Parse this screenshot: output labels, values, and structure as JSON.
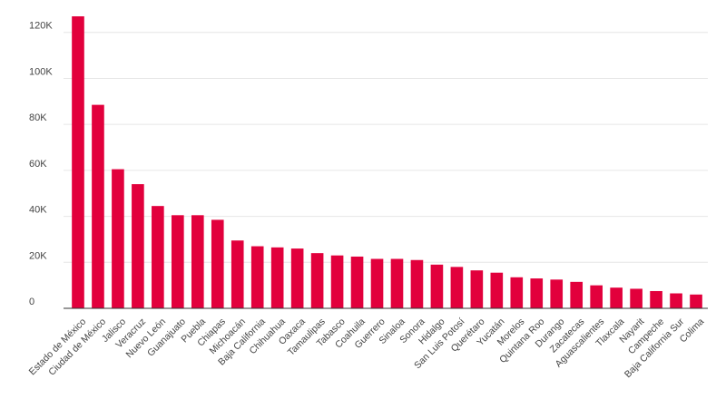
{
  "chart_data": {
    "type": "bar",
    "categories": [
      "Estado de México",
      "Ciudad de México",
      "Jalisco",
      "Veracruz",
      "Nuevo León",
      "Guanajuato",
      "Puebla",
      "Chiapas",
      "Michoacán",
      "Baja California",
      "Chihuahua",
      "Oaxaca",
      "Tamaulipas",
      "Tabasco",
      "Coahuila",
      "Guerrero",
      "Sinaloa",
      "Sonora",
      "Hidalgo",
      "San Luis Potosí",
      "Querétaro",
      "Yucatán",
      "Morelos",
      "Quintana Roo",
      "Durango",
      "Zacatecas",
      "Aguascalientes",
      "Tlaxcala",
      "Nayarit",
      "Campeche",
      "Baja California Sur",
      "Colima"
    ],
    "values": [
      127000,
      88500,
      60500,
      54000,
      44500,
      40500,
      40500,
      38500,
      29500,
      27000,
      26500,
      26000,
      24000,
      23000,
      22500,
      21500,
      21500,
      21000,
      19000,
      18000,
      16500,
      15500,
      13500,
      13000,
      12500,
      11500,
      10000,
      9000,
      8500,
      7500,
      6500,
      6000
    ],
    "yticks": [
      0,
      20000,
      40000,
      60000,
      80000,
      100000,
      120000
    ],
    "ytick_labels": [
      "0",
      "20K",
      "40K",
      "60K",
      "80K",
      "100K",
      "120K"
    ],
    "ylim": [
      0,
      127000
    ],
    "title": "",
    "xlabel": "",
    "ylabel": "",
    "grid": true,
    "colors": {
      "bar": "#e2003c",
      "grid": "#e6e6e6",
      "axis": "#333333",
      "text": "#444444"
    }
  }
}
